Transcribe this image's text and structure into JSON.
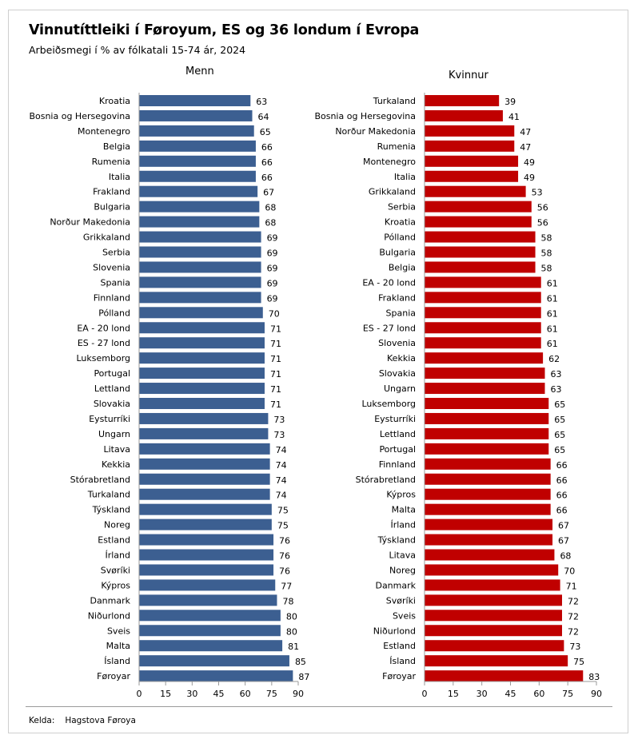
{
  "header": {
    "title": "Vinnutíttleiki í Føroyum, ES og 36 londum í Evropa",
    "subtitle": "Arbeiðsmegi í % av fólkatali 15-74 ár, 2024"
  },
  "source": {
    "label": "Kelda:",
    "value": "Hagstova Føroya"
  },
  "chart_data": [
    {
      "type": "bar",
      "orientation": "horizontal",
      "title": "Menn",
      "color": "#3c5f91",
      "xlim": [
        0,
        90
      ],
      "xticks": [
        0,
        15,
        30,
        45,
        60,
        75,
        90
      ],
      "categories": [
        "Kroatia",
        "Bosnia og Hersegovina",
        "Montenegro",
        "Belgia",
        "Rumenia",
        "Italia",
        "Frakland",
        "Bulgaria",
        "Norður Makedonia",
        "Grikkaland",
        "Serbia",
        "Slovenia",
        "Spania",
        "Finnland",
        "Pólland",
        "EA - 20 lond",
        "ES - 27 lond",
        "Luksemborg",
        "Portugal",
        "Lettland",
        "Slovakia",
        "Eysturríki",
        "Ungarn",
        "Litava",
        "Kekkia",
        "Stórabretland",
        "Turkaland",
        "Týskland",
        "Noreg",
        "Estland",
        "Írland",
        "Svøríki",
        "Kýpros",
        "Danmark",
        "Niðurlond",
        "Sveis",
        "Malta",
        "Ísland",
        "Føroyar"
      ],
      "values": [
        63,
        64,
        65,
        66,
        66,
        66,
        67,
        68,
        68,
        69,
        69,
        69,
        69,
        69,
        70,
        71,
        71,
        71,
        71,
        71,
        71,
        73,
        73,
        74,
        74,
        74,
        74,
        75,
        75,
        76,
        76,
        76,
        77,
        78,
        80,
        80,
        81,
        85,
        87
      ]
    },
    {
      "type": "bar",
      "orientation": "horizontal",
      "title": "Kvinnur",
      "color": "#c00000",
      "xlim": [
        0,
        90
      ],
      "xticks": [
        0,
        15,
        30,
        45,
        60,
        75,
        90
      ],
      "categories": [
        "Turkaland",
        "Bosnia og Hersegovina",
        "Norður Makedonia",
        "Rumenia",
        "Montenegro",
        "Italia",
        "Grikkaland",
        "Serbia",
        "Kroatia",
        "Pólland",
        "Bulgaria",
        "Belgia",
        "EA - 20 lond",
        "Frakland",
        "Spania",
        "ES - 27 lond",
        "Slovenia",
        "Kekkia",
        "Slovakia",
        "Ungarn",
        "Luksemborg",
        "Eysturríki",
        "Lettland",
        "Portugal",
        "Finnland",
        "Stórabretland",
        "Kýpros",
        "Malta",
        "Írland",
        "Týskland",
        "Litava",
        "Noreg",
        "Danmark",
        "Svøríki",
        "Sveis",
        "Niðurlond",
        "Estland",
        "Ísland",
        "Føroyar"
      ],
      "values": [
        39,
        41,
        47,
        47,
        49,
        49,
        53,
        56,
        56,
        58,
        58,
        58,
        61,
        61,
        61,
        61,
        61,
        62,
        63,
        63,
        65,
        65,
        65,
        65,
        66,
        66,
        66,
        66,
        67,
        67,
        68,
        70,
        71,
        72,
        72,
        72,
        73,
        75,
        83
      ]
    }
  ]
}
